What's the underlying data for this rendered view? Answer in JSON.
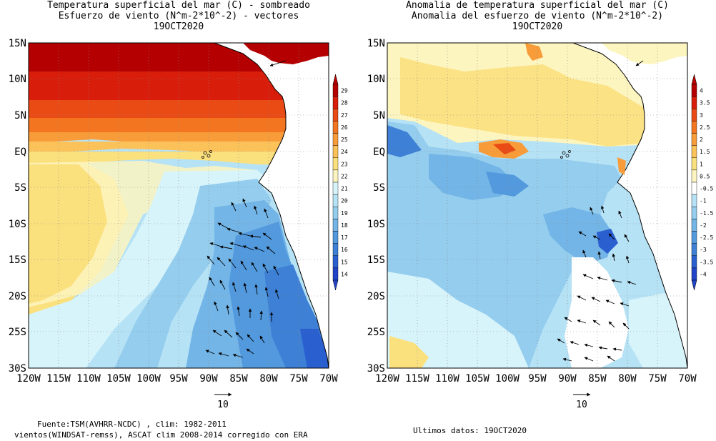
{
  "left_panel": {
    "title_lines": [
      "Temperatura superficial del mar (C) - sombreado",
      "Esfuerzo de viento (N^m-2*10^-2) - vectores",
      "19OCT2020"
    ],
    "colorbar_labels": [
      "29",
      "28",
      "27",
      "26",
      "25",
      "24",
      "23",
      "22",
      "21",
      "20",
      "19",
      "18",
      "17",
      "16",
      "15",
      "14"
    ],
    "colorbar_colors": [
      "#b40000",
      "#d81d0a",
      "#ea4a14",
      "#f4751f",
      "#f89c3a",
      "#fbc25a",
      "#fbe07e",
      "#fdf5bf",
      "#d8f4fb",
      "#b6e2f5",
      "#94cdee",
      "#73b5e7",
      "#5299dd",
      "#3d80d6",
      "#2a5fd0",
      "#2143c8"
    ],
    "vector_scale_label": "10"
  },
  "right_panel": {
    "title_lines": [
      "Anomalia de temperatura superficial del mar (C)",
      "Anomalia del esfuerzo de viento (N^m-2*10^-2)",
      "19OCT2020"
    ],
    "colorbar_labels": [
      "4",
      "3.5",
      "3",
      "2.5",
      "2",
      "1.5",
      "1",
      "0.5",
      "-0.5",
      "-1",
      "-1.5",
      "-2",
      "-2.5",
      "-3",
      "-3.5",
      "-4"
    ],
    "colorbar_colors": [
      "#b40000",
      "#d81d0a",
      "#ea4a14",
      "#f4751f",
      "#f89c3a",
      "#fbc25a",
      "#fbe07e",
      "#fdf5bf",
      "#ffffff",
      "#b6e2f5",
      "#94cdee",
      "#73b5e7",
      "#5299dd",
      "#3d80d6",
      "#2a5fd0",
      "#2143c8"
    ],
    "vector_scale_label": "10"
  },
  "lat_labels": [
    "15N",
    "10N",
    "5N",
    "EQ",
    "5S",
    "10S",
    "15S",
    "20S",
    "25S",
    "30S"
  ],
  "lon_labels": [
    "120W",
    "115W",
    "110W",
    "105W",
    "100W",
    "95W",
    "90W",
    "85W",
    "80W",
    "75W",
    "70W"
  ],
  "footer": {
    "source_line1": "Fuente:TSM(AVHRR-NCDC) , clim: 1982-2011",
    "source_line2": "vientos(WINDSAT-remss), ASCAT clim 2008-2014 corregido con ERA",
    "last_data": "Ultimos datos: 19OCT2020"
  }
}
